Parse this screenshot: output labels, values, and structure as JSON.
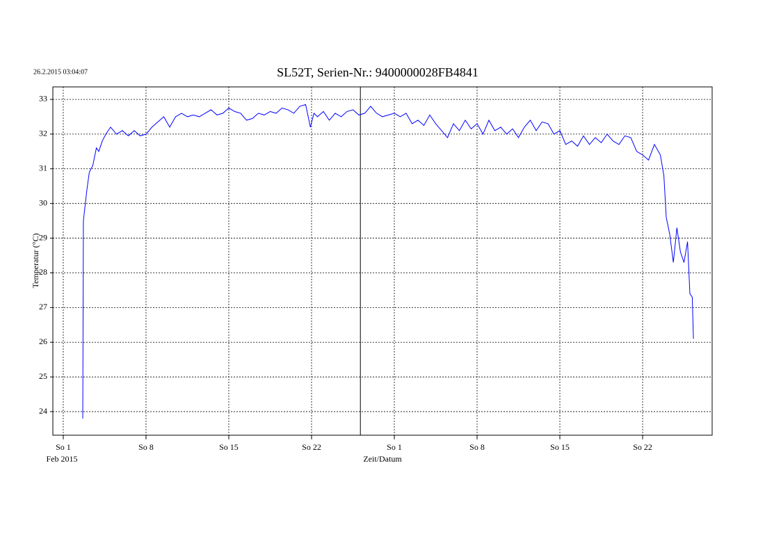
{
  "chart_data": {
    "type": "line",
    "title": "SL52T,  Serien-Nr.: 9400000028FB4841",
    "timestamp": "26.2.2015 03:04:07",
    "y_label": "Temperatur (°C)",
    "x_label": "Zeit/Datum",
    "x_sublabel": "Feb 2015",
    "xlim": [
      -0.88,
      54.88
    ],
    "ylim": [
      23.32,
      33.36
    ],
    "xticks": [
      {
        "value": 0,
        "label": "So  1"
      },
      {
        "value": 7,
        "label": "So  8"
      },
      {
        "value": 14,
        "label": "So  15"
      },
      {
        "value": 21,
        "label": "So  22"
      },
      {
        "value": 28,
        "label": "So  1"
      },
      {
        "value": 35,
        "label": "So  8"
      },
      {
        "value": 42,
        "label": "So  15"
      },
      {
        "value": 49,
        "label": "So  22"
      }
    ],
    "yticks": [
      24,
      25,
      26,
      27,
      28,
      29,
      30,
      31,
      32,
      33
    ],
    "grid": true,
    "marker_x": 25.13,
    "series": [
      {
        "name": "Temperatur",
        "color": "#0000ff",
        "x": [
          1.65,
          1.7,
          1.8,
          2.0,
          2.2,
          2.5,
          2.8,
          3.0,
          3.3,
          3.6,
          4.0,
          4.5,
          5.0,
          5.5,
          6.0,
          6.5,
          7.0,
          7.5,
          8.0,
          8.5,
          9.0,
          9.5,
          10,
          10.5,
          11,
          11.5,
          12,
          12.5,
          13,
          13.5,
          14,
          14.5,
          15,
          15.5,
          16,
          16.5,
          17,
          17.5,
          18,
          18.5,
          19,
          19.5,
          20,
          20.5,
          20.9,
          21.2,
          21.5,
          22,
          22.5,
          23,
          23.5,
          24,
          24.5,
          25,
          25.5,
          26,
          26.5,
          27,
          27.5,
          28,
          28.5,
          29,
          29.5,
          30,
          30.5,
          31,
          31.5,
          32,
          32.5,
          33,
          33.5,
          34,
          34.5,
          35,
          35.5,
          36,
          36.5,
          37,
          37.5,
          38,
          38.5,
          39,
          39.5,
          40,
          40.5,
          41,
          41.5,
          42,
          42.5,
          43,
          43.5,
          44,
          44.5,
          45,
          45.5,
          46,
          46.5,
          47,
          47.5,
          48,
          48.5,
          49,
          49.5,
          50,
          50.5,
          50.8,
          51,
          51.3,
          51.6,
          51.9,
          52.2,
          52.5,
          52.8,
          53.0,
          53.2,
          53.3
        ],
        "values": [
          23.8,
          29.5,
          29.8,
          30.4,
          30.9,
          31.1,
          31.6,
          31.5,
          31.8,
          32.0,
          32.2,
          32.0,
          32.1,
          31.95,
          32.1,
          31.95,
          32.0,
          32.2,
          32.35,
          32.5,
          32.2,
          32.5,
          32.6,
          32.5,
          32.55,
          32.5,
          32.6,
          32.7,
          32.55,
          32.6,
          32.75,
          32.65,
          32.6,
          32.4,
          32.45,
          32.6,
          32.55,
          32.65,
          32.6,
          32.75,
          32.7,
          32.6,
          32.8,
          32.85,
          32.2,
          32.6,
          32.5,
          32.65,
          32.4,
          32.6,
          32.5,
          32.65,
          32.7,
          32.55,
          32.6,
          32.8,
          32.6,
          32.5,
          32.55,
          32.6,
          32.5,
          32.6,
          32.3,
          32.4,
          32.25,
          32.55,
          32.3,
          32.1,
          31.9,
          32.3,
          32.1,
          32.4,
          32.15,
          32.3,
          32.0,
          32.4,
          32.1,
          32.2,
          32.0,
          32.15,
          31.9,
          32.2,
          32.4,
          32.1,
          32.35,
          32.3,
          32.0,
          32.1,
          31.7,
          31.8,
          31.65,
          31.95,
          31.7,
          31.9,
          31.75,
          32.0,
          31.8,
          31.7,
          31.95,
          31.9,
          31.5,
          31.4,
          31.25,
          31.7,
          31.4,
          30.8,
          29.6,
          29.1,
          28.3,
          29.3,
          28.6,
          28.3,
          28.9,
          27.4,
          27.3,
          26.1
        ]
      }
    ]
  }
}
